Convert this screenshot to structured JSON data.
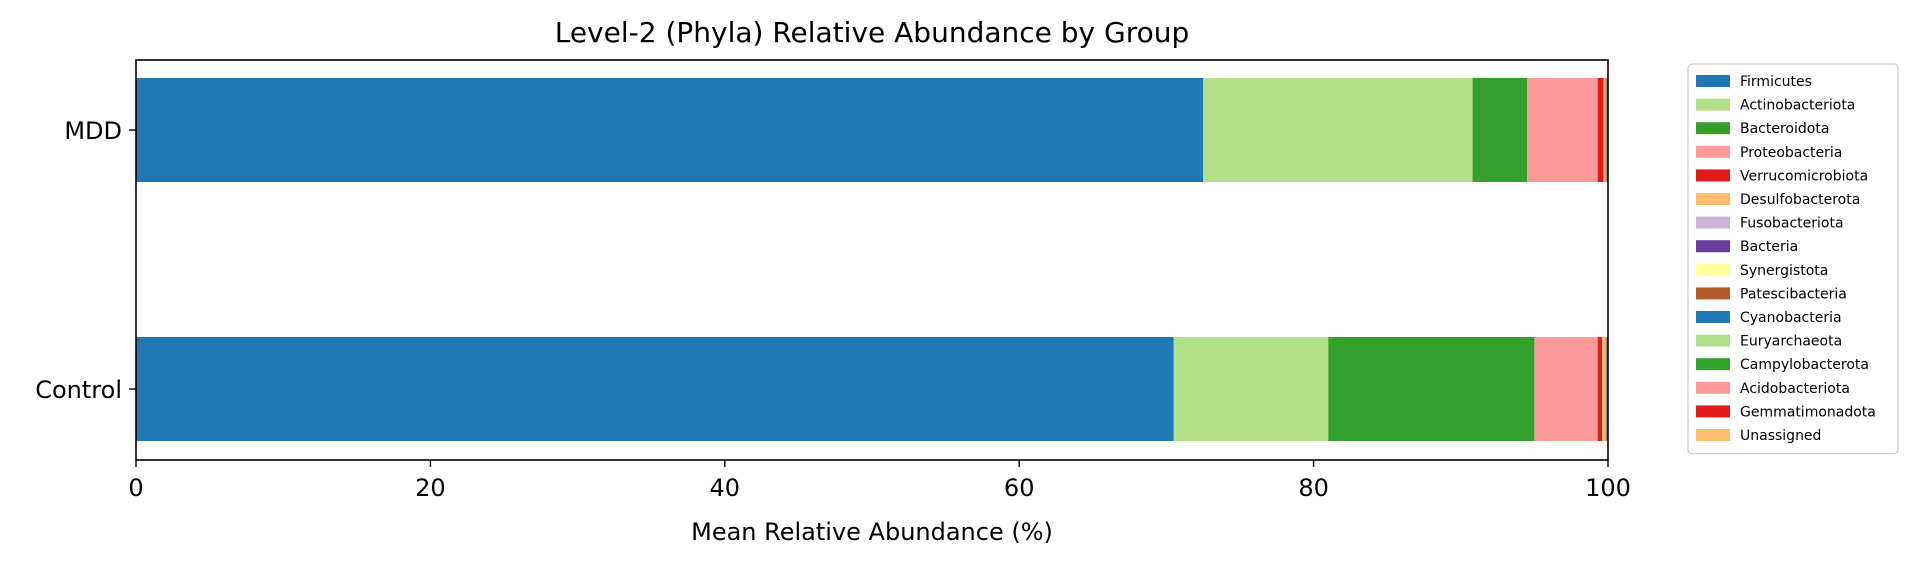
{
  "chart_data": {
    "type": "bar",
    "orientation": "horizontal",
    "stacked": true,
    "title": "Level-2 (Phyla) Relative Abundance by Group",
    "xlabel": "Mean Relative Abundance (%)",
    "ylabel": "",
    "xlim": [
      0,
      100
    ],
    "xticks": [
      "0",
      "20",
      "40",
      "60",
      "80",
      "100"
    ],
    "categories": [
      "MDD",
      "Control"
    ],
    "grid": false,
    "legend": "outside-right",
    "series": [
      {
        "name": "Firmicutes",
        "color": "#1f78b4",
        "values": [
          72.5,
          70.5
        ]
      },
      {
        "name": "Actinobacteriota",
        "color": "#b2df8a",
        "values": [
          18.3,
          10.5
        ]
      },
      {
        "name": "Bacteroidota",
        "color": "#33a02c",
        "values": [
          3.7,
          14.0
        ]
      },
      {
        "name": "Proteobacteria",
        "color": "#fb9a99",
        "values": [
          4.8,
          4.3
        ]
      },
      {
        "name": "Verrucomicrobiota",
        "color": "#e31a1c",
        "values": [
          0.4,
          0.3
        ]
      },
      {
        "name": "Desulfobacterota",
        "color": "#fdbf6f",
        "values": [
          0.1,
          0.2
        ]
      },
      {
        "name": "Fusobacteriota",
        "color": "#cab2d6",
        "values": [
          0.05,
          0.05
        ]
      },
      {
        "name": "Bacteria",
        "color": "#6a3d9a",
        "values": [
          0.05,
          0.05
        ]
      },
      {
        "name": "Synergistota",
        "color": "#ffff99",
        "values": [
          0.02,
          0.02
        ]
      },
      {
        "name": "Patescibacteria",
        "color": "#b15928",
        "values": [
          0.02,
          0.02
        ]
      },
      {
        "name": "Cyanobacteria",
        "color": "#1f78b4",
        "values": [
          0.02,
          0.02
        ]
      },
      {
        "name": "Euryarchaeota",
        "color": "#b2df8a",
        "values": [
          0.01,
          0.01
        ]
      },
      {
        "name": "Campylobacterota",
        "color": "#33a02c",
        "values": [
          0.01,
          0.01
        ]
      },
      {
        "name": "Acidobacteriota",
        "color": "#fb9a99",
        "values": [
          0.01,
          0.01
        ]
      },
      {
        "name": "Gemmatimonadota",
        "color": "#e31a1c",
        "values": [
          0.01,
          0.01
        ]
      },
      {
        "name": "Unassigned",
        "color": "#fdbf6f",
        "values": [
          0.02,
          0.02
        ]
      }
    ]
  }
}
